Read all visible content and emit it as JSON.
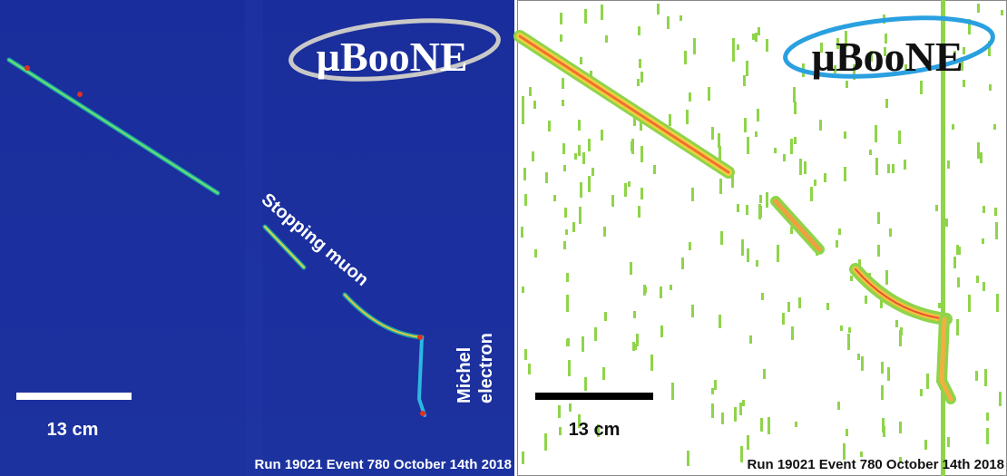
{
  "panels": [
    {
      "logo": "µBooNE",
      "annotations": [
        "Stopping muon"
      ],
      "michel": [
        "Michel",
        "electron"
      ],
      "scale_label": "13 cm",
      "footer": "Run 19021 Event 780 October 14th 2018"
    },
    {
      "logo": "µBooNE",
      "scale_label": "13 cm",
      "footer": "Run 19021 Event 780 October 14th 2018"
    }
  ]
}
